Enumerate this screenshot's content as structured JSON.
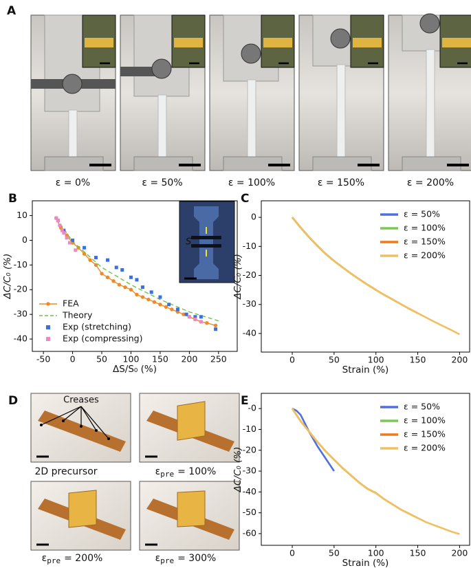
{
  "panels": {
    "A": {
      "label": "A",
      "captions": [
        "ε = 0%",
        "ε = 50%",
        "ε = 100%",
        "ε = 150%",
        "ε = 200%"
      ]
    },
    "B": {
      "label": "B",
      "inset_label": "S"
    },
    "C": {
      "label": "C"
    },
    "D": {
      "label": "D",
      "annotation": "Creases",
      "captions": [
        {
          "text": "2D precursor"
        },
        {
          "symbol": "ε",
          "sub": "pre",
          "rest": "= 100%"
        },
        {
          "symbol": "ε",
          "sub": "pre",
          "rest": "= 200%"
        },
        {
          "symbol": "ε",
          "sub": "pre",
          "rest": "= 300%"
        }
      ]
    },
    "E": {
      "label": "E"
    }
  },
  "chart_data": [
    {
      "type": "line",
      "x_label": "ΔS/S₀ (%)",
      "y_label": "ΔC/C₀ (%)",
      "xlim": [
        -69,
        282
      ],
      "xticks": [
        -50,
        0,
        50,
        100,
        150,
        200,
        250
      ],
      "ylim": [
        -45,
        16
      ],
      "yticks": [
        10,
        0,
        -10,
        -20,
        -30,
        -40
      ],
      "legend": "lower left",
      "series": [
        {
          "name": "FEA",
          "color": "#f08a24",
          "style": "line-markers",
          "x": [
            -28,
            -20,
            -10,
            0,
            10,
            20,
            30,
            40,
            50,
            60,
            70,
            80,
            90,
            100,
            110,
            120,
            130,
            140,
            150,
            160,
            170,
            180,
            190,
            200,
            210,
            220,
            230,
            245
          ],
          "values": [
            9,
            5,
            2,
            -1,
            -3,
            -5.5,
            -8,
            -10,
            -13.5,
            -15,
            -16.5,
            -18,
            -19,
            -20,
            -22,
            -23,
            -24,
            -25,
            -26,
            -27,
            -28,
            -29,
            -30,
            -31,
            -32,
            -33,
            -33.5,
            -34.5
          ]
        },
        {
          "name": "Theory",
          "color": "#6cc24a",
          "style": "dashed",
          "x": [
            -28,
            0,
            50,
            100,
            150,
            200,
            255
          ],
          "values": [
            9,
            -0.5,
            -11,
            -18,
            -24,
            -29,
            -33
          ]
        },
        {
          "name": "Exp (stretching)",
          "color": "#3a6fe0",
          "style": "markers",
          "x": [
            -25,
            -15,
            0,
            20,
            40,
            60,
            75,
            85,
            100,
            110,
            120,
            135,
            150,
            165,
            180,
            195,
            210,
            220,
            245
          ],
          "values": [
            8,
            4,
            0,
            -3,
            -7,
            -8,
            -11,
            -12,
            -15,
            -16,
            -19,
            -21,
            -23,
            -26,
            -28,
            -30,
            -31,
            -31,
            -36
          ]
        },
        {
          "name": "Exp (compressing)",
          "color": "#e98ac6",
          "style": "markers",
          "x": [
            -28,
            -25,
            -22,
            -18,
            -15,
            -10,
            -5,
            5,
            200,
            210,
            220
          ],
          "values": [
            9,
            8,
            6,
            4,
            3,
            1,
            -1,
            -4,
            -31,
            -32,
            -33
          ]
        }
      ]
    },
    {
      "type": "line",
      "x_label": "Strain (%)",
      "y_label": "ΔC/C₀ (%)",
      "xlim": [
        -37,
        212
      ],
      "xticks": [
        0,
        50,
        100,
        150,
        200
      ],
      "ylim": [
        -46.4,
        5.7
      ],
      "yticks": [
        0,
        -10,
        -20,
        -30,
        -40
      ],
      "legend": "upper right",
      "series": [
        {
          "name": "ε = 50%",
          "color": "#4f6fe0",
          "style": "line",
          "x": [
            0,
            10,
            20,
            30,
            40,
            50
          ],
          "values": [
            0,
            -3.5,
            -6.8,
            -9.8,
            -12.6,
            -15
          ]
        },
        {
          "name": "ε = 100%",
          "color": "#7cc850",
          "style": "line",
          "x": [
            0,
            10,
            20,
            30,
            40,
            50,
            60,
            70,
            80,
            90,
            100
          ],
          "values": [
            0,
            -3.5,
            -6.8,
            -9.8,
            -12.6,
            -15,
            -17.2,
            -19.3,
            -21.3,
            -23.2,
            -25
          ]
        },
        {
          "name": "ε = 150%",
          "color": "#f07a1a",
          "style": "line",
          "x": [
            0,
            10,
            20,
            30,
            40,
            50,
            60,
            70,
            80,
            90,
            100,
            110,
            120,
            130,
            140,
            150
          ],
          "values": [
            0,
            -3.5,
            -6.8,
            -9.8,
            -12.6,
            -15,
            -17.2,
            -19.3,
            -21.3,
            -23.2,
            -25,
            -26.7,
            -28.3,
            -29.9,
            -31.5,
            -33
          ]
        },
        {
          "name": "ε = 200%",
          "color": "#f0c060",
          "style": "line",
          "x": [
            0,
            10,
            20,
            30,
            40,
            50,
            60,
            70,
            80,
            90,
            100,
            110,
            120,
            130,
            140,
            150,
            160,
            170,
            180,
            190,
            200
          ],
          "values": [
            0,
            -3.5,
            -6.8,
            -9.8,
            -12.6,
            -15,
            -17.2,
            -19.3,
            -21.3,
            -23.2,
            -25,
            -26.7,
            -28.3,
            -29.9,
            -31.5,
            -33,
            -34.5,
            -36,
            -37.4,
            -38.8,
            -40.3
          ]
        }
      ]
    },
    {
      "type": "line",
      "x_label": "Strain (%)",
      "y_label": "ΔC/C₀ (%)",
      "xlim": [
        -37,
        212
      ],
      "xticks": [
        0,
        50,
        100,
        150,
        200
      ],
      "ylim": [
        -65.6,
        7.3
      ],
      "yticks": [
        {
          "value": 0,
          "label": "-0"
        },
        -10,
        -20,
        -30,
        -40,
        -50,
        -60
      ],
      "legend": "upper right",
      "series": [
        {
          "name": "ε = 50%",
          "color": "#4f6fe0",
          "style": "line",
          "x": [
            0,
            5,
            10,
            20,
            30,
            40,
            50
          ],
          "values": [
            0,
            -1,
            -3,
            -11,
            -18,
            -24,
            -30
          ]
        },
        {
          "name": "ε = 100%",
          "color": "#7cc850",
          "style": "line",
          "x": [
            0,
            10,
            20,
            30,
            40,
            50,
            60,
            70,
            80,
            90,
            100
          ],
          "values": [
            0,
            -6,
            -11,
            -16,
            -20.5,
            -24.5,
            -28.5,
            -32,
            -35.5,
            -38.5,
            -40.5
          ]
        },
        {
          "name": "ε = 150%",
          "color": "#f07a1a",
          "style": "line",
          "x": [
            0,
            10,
            20,
            30,
            40,
            50,
            60,
            70,
            80,
            90,
            100,
            110,
            120,
            130,
            140,
            150
          ],
          "values": [
            0,
            -6,
            -11,
            -16,
            -20.5,
            -24.5,
            -28.5,
            -32,
            -35.5,
            -38.5,
            -40.5,
            -43.5,
            -46,
            -48.5,
            -50.5,
            -52.5
          ]
        },
        {
          "name": "ε = 200%",
          "color": "#f0c060",
          "style": "line",
          "x": [
            0,
            10,
            20,
            30,
            40,
            50,
            60,
            70,
            80,
            90,
            100,
            110,
            120,
            130,
            140,
            150,
            160,
            170,
            180,
            190,
            200
          ],
          "values": [
            0,
            -6,
            -11,
            -16,
            -20.5,
            -24.5,
            -28.5,
            -32,
            -35.5,
            -38.5,
            -40.5,
            -43.5,
            -46,
            -48.5,
            -50.5,
            -52.5,
            -54.5,
            -56,
            -57.5,
            -59,
            -60.2
          ]
        }
      ]
    }
  ]
}
